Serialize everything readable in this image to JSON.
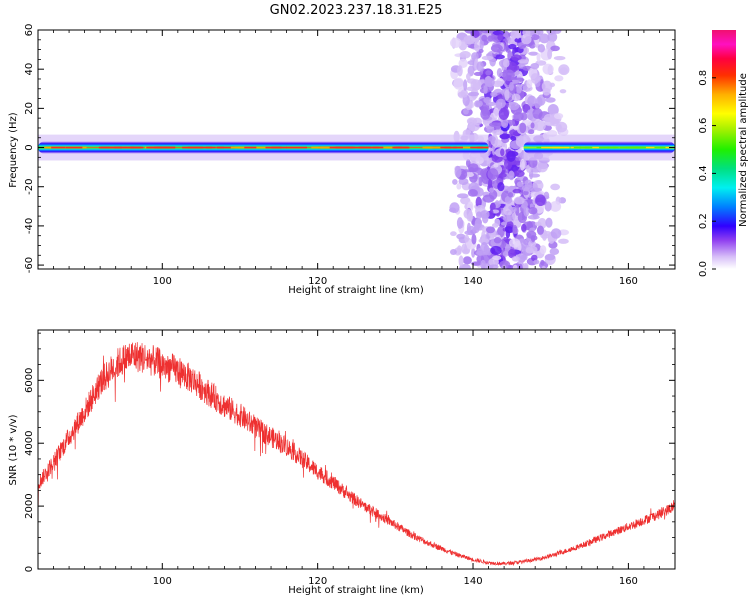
{
  "title": "GN02.2023.237.18.31.E25",
  "chart_data": [
    {
      "type": "heatmap",
      "xlabel": "Height of straight line (km)",
      "ylabel": "Frequency (Hz)",
      "xlim": [
        84,
        166
      ],
      "ylim": [
        -62,
        60
      ],
      "xticks": [
        100,
        120,
        140,
        160
      ],
      "yticks": [
        -60,
        -40,
        -20,
        0,
        20,
        40,
        60
      ],
      "colorbar": {
        "label": "Normalized spectral amplitude",
        "range": [
          0,
          1
        ],
        "ticks": [
          "0.0",
          "0.2",
          "0.4",
          "0.6",
          "0.8"
        ],
        "colormap": "gist_ncar-like (white, purple, blue, cyan, green, yellow, orange, red, magenta)"
      },
      "features": {
        "carrier_band": {
          "frequency_hz": 0,
          "half_width_hz": 3,
          "x_ranges_km": [
            [
              84,
              142
            ],
            [
              146.5,
              166
            ]
          ],
          "amplitude": 0.9
        },
        "scatter_region_km": [
          137,
          151
        ],
        "scatter_frequency_hz": [
          -62,
          60
        ],
        "gap_km": [
          143,
          146
        ]
      }
    },
    {
      "type": "line",
      "xlabel": "Height of straight line (km)",
      "ylabel": "SNR (10 * v/v)",
      "xlim": [
        84,
        166
      ],
      "ylim": [
        0,
        7600
      ],
      "xticks": [
        100,
        120,
        140,
        160
      ],
      "yticks": [
        0,
        2000,
        4000,
        6000
      ],
      "series": [
        {
          "color": "#ee3030",
          "x": [
            84,
            86,
            88,
            90,
            92,
            94,
            96,
            98,
            100,
            102,
            104,
            106,
            108,
            110,
            112,
            114,
            116,
            118,
            120,
            122,
            124,
            126,
            128,
            130,
            132,
            134,
            136,
            138,
            140,
            142,
            144,
            146,
            148,
            150,
            152,
            154,
            156,
            158,
            160,
            162,
            164,
            166
          ],
          "y": [
            2700,
            3400,
            4200,
            5000,
            5900,
            6500,
            6800,
            6700,
            6500,
            6300,
            6000,
            5600,
            5200,
            4900,
            4500,
            4200,
            3900,
            3500,
            3100,
            2750,
            2350,
            2000,
            1700,
            1400,
            1100,
            850,
            650,
            450,
            300,
            200,
            170,
            220,
            300,
            420,
            580,
            750,
            950,
            1150,
            1350,
            1550,
            1750,
            2000
          ]
        }
      ]
    }
  ]
}
